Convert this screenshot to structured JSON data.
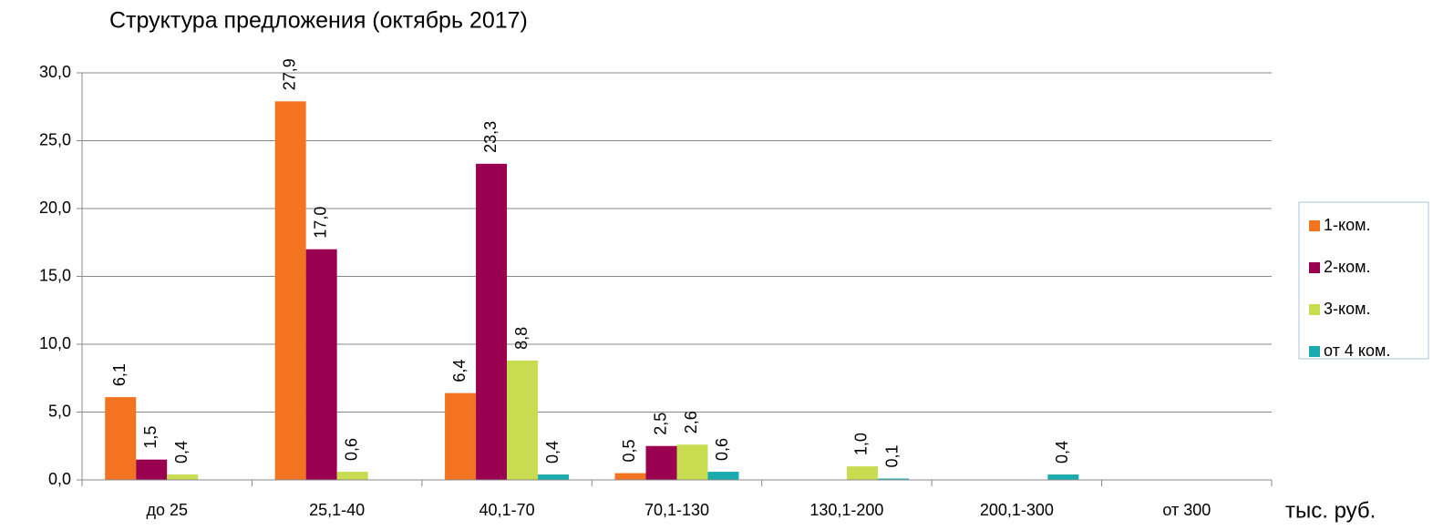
{
  "chart_data": {
    "type": "bar",
    "title": "Структура предложения (октябрь 2017)",
    "x_label": "тыс. руб.",
    "categories": [
      "до 25",
      "25,1-40",
      "40,1-70",
      "70,1-130",
      "130,1-200",
      "200,1-300",
      "от 300"
    ],
    "series": [
      {
        "name": "1-ком.",
        "color": "#f47321",
        "values": [
          6.1,
          27.9,
          6.4,
          0.5,
          null,
          null,
          null
        ],
        "value_labels": [
          "6,1",
          "27,9",
          "6,4",
          "0,5",
          null,
          null,
          null
        ]
      },
      {
        "name": "2-ком.",
        "color": "#990050",
        "values": [
          1.5,
          17.0,
          23.3,
          2.5,
          null,
          null,
          null
        ],
        "value_labels": [
          "1,5",
          "17,0",
          "23,3",
          "2,5",
          null,
          null,
          null
        ]
      },
      {
        "name": "3-ком.",
        "color": "#c8dc50",
        "values": [
          0.4,
          0.6,
          8.8,
          2.6,
          1.0,
          null,
          null
        ],
        "value_labels": [
          "0,4",
          "0,6",
          "8,8",
          "2,6",
          "1,0",
          null,
          null
        ]
      },
      {
        "name": "от 4 ком.",
        "color": "#1aabb0",
        "values": [
          null,
          null,
          0.4,
          0.6,
          0.1,
          0.4,
          null
        ],
        "value_labels": [
          null,
          null,
          "0,4",
          "0,6",
          "0,1",
          "0,4",
          null
        ]
      }
    ],
    "ylim": [
      0,
      30
    ],
    "yticks": [
      {
        "value": 0,
        "label": "0,0"
      },
      {
        "value": 5,
        "label": "5,0"
      },
      {
        "value": 10,
        "label": "10,0"
      },
      {
        "value": 15,
        "label": "15,0"
      },
      {
        "value": 20,
        "label": "20,0"
      },
      {
        "value": 25,
        "label": "25,0"
      },
      {
        "value": 30,
        "label": "30,0"
      }
    ],
    "grid": true,
    "legend": "right"
  }
}
